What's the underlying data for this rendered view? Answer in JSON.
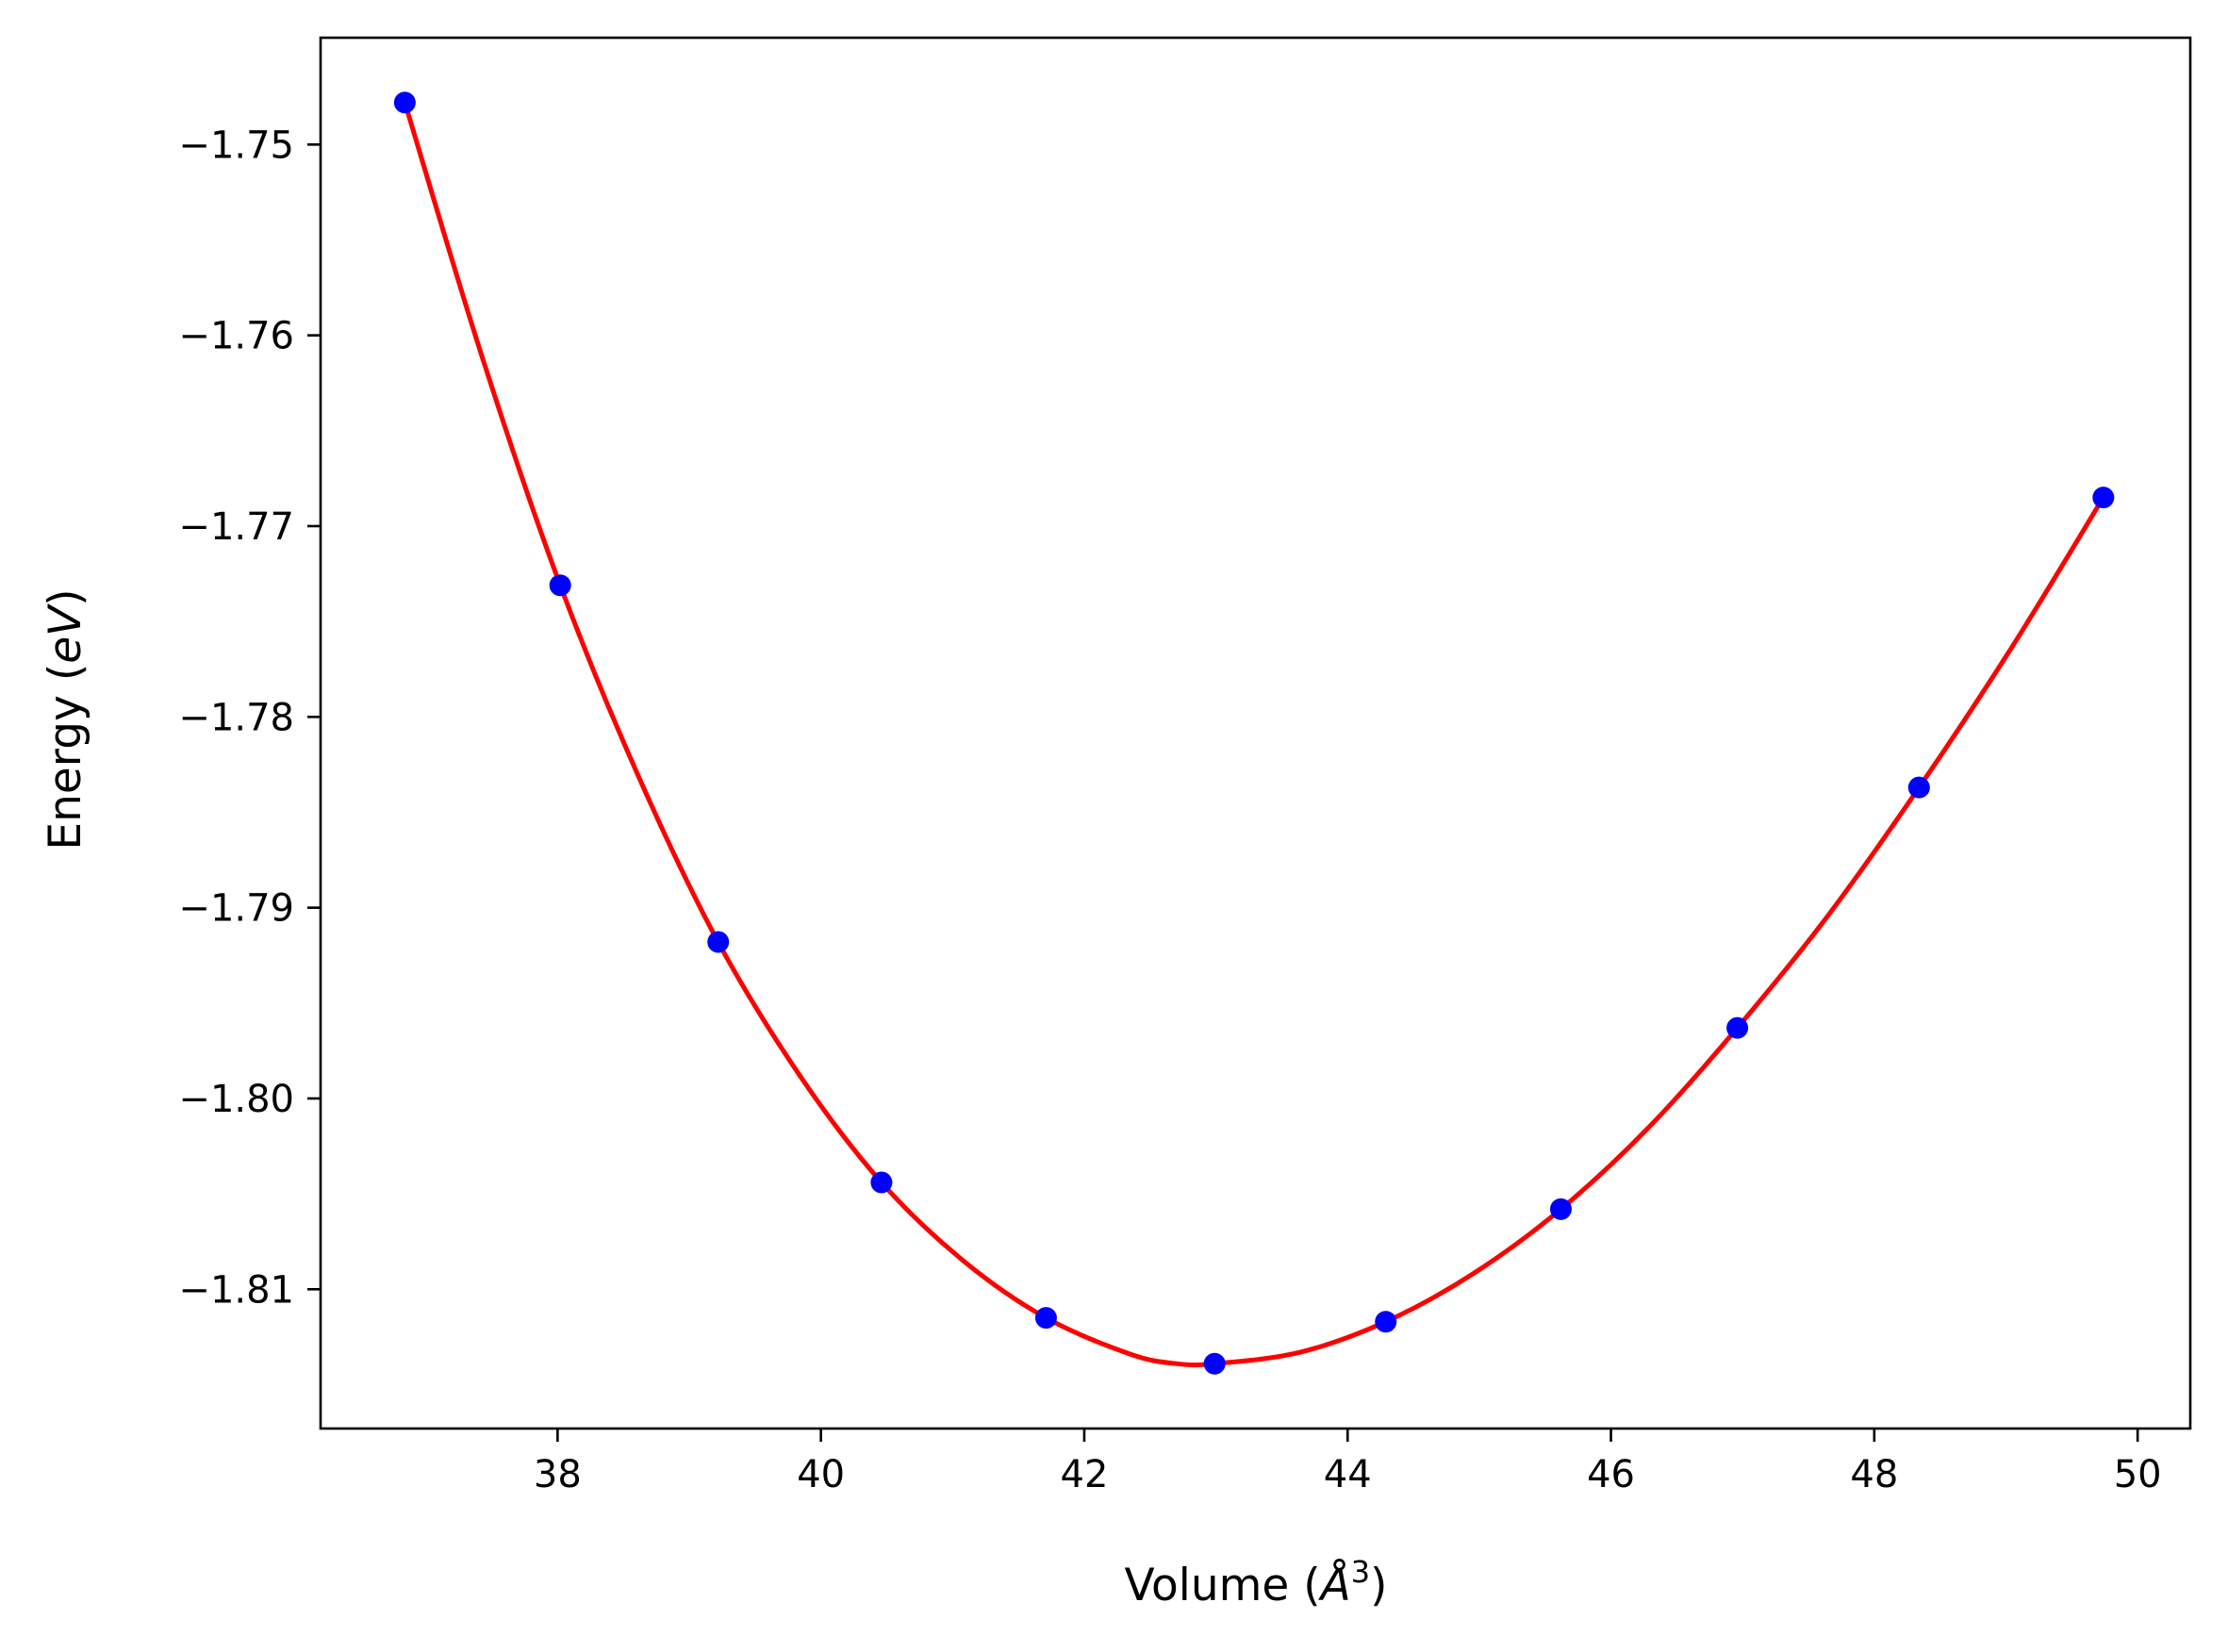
{
  "chart_data": {
    "type": "line",
    "title": "",
    "xlabel": {
      "prefix": "Volume (",
      "symbol": "Å",
      "superscript": "3",
      "suffix": ")"
    },
    "ylabel": {
      "prefix": "Energy (",
      "symbol": "eV",
      "suffix": ")"
    },
    "xlim": [
      36.2,
      50.4
    ],
    "ylim": [
      -1.8173,
      -1.7444
    ],
    "xticks": [
      38,
      40,
      42,
      44,
      46,
      48,
      50
    ],
    "xtick_labels": [
      "38",
      "40",
      "42",
      "44",
      "46",
      "48",
      "50"
    ],
    "yticks": [
      -1.75,
      -1.76,
      -1.77,
      -1.78,
      -1.79,
      -1.8,
      -1.81
    ],
    "ytick_labels": [
      "−1.75",
      "−1.76",
      "−1.77",
      "−1.78",
      "−1.79",
      "−1.80",
      "−1.81"
    ],
    "grid": false,
    "series": [
      {
        "kind": "points",
        "color": "#0000ff",
        "x": [
          36.84,
          38.02,
          39.22,
          40.46,
          41.71,
          42.99,
          44.29,
          45.62,
          46.96,
          48.34,
          49.74
        ],
        "y": [
          -1.7478,
          -1.7731,
          -1.7918,
          -1.8044,
          -1.8115,
          -1.8139,
          -1.8117,
          -1.8058,
          -1.7963,
          -1.7837,
          -1.7685
        ]
      },
      {
        "kind": "fit",
        "color": "#ff0000",
        "x": [
          36.84,
          37.43,
          38.02,
          38.62,
          39.22,
          39.84,
          40.46,
          41.08,
          41.71,
          42.35,
          42.7,
          42.99,
          43.64,
          44.29,
          44.95,
          45.62,
          46.29,
          46.96,
          47.65,
          48.34,
          49.04,
          49.74
        ],
        "y": [
          -1.7478,
          -1.7612,
          -1.7731,
          -1.7832,
          -1.7918,
          -1.7988,
          -1.8044,
          -1.8085,
          -1.8115,
          -1.8134,
          -1.8139,
          -1.8139,
          -1.8133,
          -1.8117,
          -1.8092,
          -1.8058,
          -1.8015,
          -1.7963,
          -1.7904,
          -1.7837,
          -1.7764,
          -1.7685
        ]
      }
    ]
  }
}
